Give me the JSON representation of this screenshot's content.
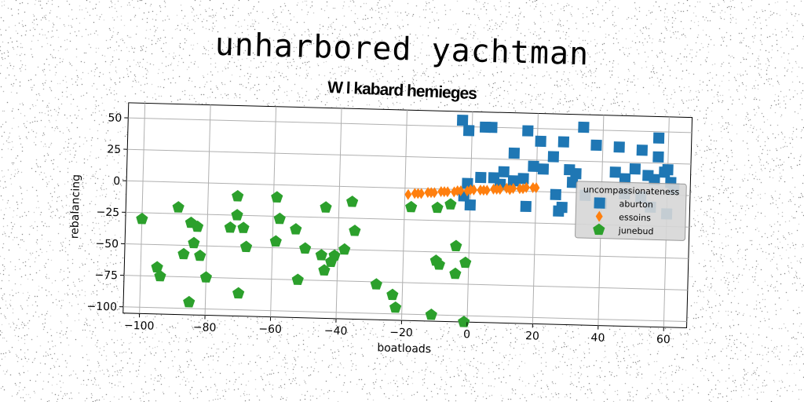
{
  "title": "unharbored yachtman",
  "chart_data": {
    "type": "scatter",
    "title": "W l kabard hemieges",
    "xlabel": "boatloads",
    "ylabel": "rebalancing",
    "xlim": [
      -105,
      67
    ],
    "ylim": [
      -105,
      62
    ],
    "xticks": [
      -100,
      -80,
      -60,
      -40,
      -20,
      0,
      20,
      40,
      60
    ],
    "yticks": [
      50,
      25,
      0,
      -25,
      -50,
      -75,
      -100
    ],
    "grid": true,
    "legend": {
      "title": "uncompassionateness",
      "position": "right"
    },
    "series": [
      {
        "name": "aburton",
        "marker": "square",
        "color": "#1f77b4",
        "points": [
          [
            -3,
            55
          ],
          [
            -1,
            47
          ],
          [
            4,
            50
          ],
          [
            6,
            50
          ],
          [
            17,
            48
          ],
          [
            21,
            40
          ],
          [
            28,
            40
          ],
          [
            34,
            52
          ],
          [
            38,
            38
          ],
          [
            45,
            37
          ],
          [
            52,
            35
          ],
          [
            57,
            45
          ],
          [
            57,
            30
          ],
          [
            50,
            20
          ],
          [
            54,
            15
          ],
          [
            56,
            12
          ],
          [
            59,
            18
          ],
          [
            61,
            10
          ],
          [
            62,
            5
          ],
          [
            60,
            20
          ],
          [
            47,
            12
          ],
          [
            44,
            17
          ],
          [
            30,
            18
          ],
          [
            31,
            8
          ],
          [
            22,
            18
          ],
          [
            19,
            20
          ],
          [
            16,
            10
          ],
          [
            13,
            8
          ],
          [
            10,
            15
          ],
          [
            7,
            10
          ],
          [
            3,
            10
          ],
          [
            -1,
            5
          ],
          [
            0,
            -12
          ],
          [
            -2,
            -5
          ],
          [
            17,
            -12
          ],
          [
            26,
            -2
          ],
          [
            27,
            -15
          ],
          [
            28,
            -12
          ],
          [
            35,
            -2
          ],
          [
            40,
            -8
          ],
          [
            47,
            0
          ],
          [
            52,
            -2
          ],
          [
            55,
            -10
          ],
          [
            60,
            -15
          ],
          [
            32,
            15
          ],
          [
            25,
            28
          ],
          [
            13,
            30
          ],
          [
            9,
            5
          ]
        ]
      },
      {
        "name": "essoins",
        "marker": "diamond",
        "color": "#ff7f0e",
        "points": [
          [
            -19,
            -5
          ],
          [
            -17,
            -4
          ],
          [
            -15,
            -4
          ],
          [
            -13,
            -3
          ],
          [
            -11,
            -3
          ],
          [
            -9,
            -2
          ],
          [
            -7,
            -2
          ],
          [
            -5,
            -2
          ],
          [
            -3,
            -1
          ],
          [
            -1,
            -1
          ],
          [
            1,
            0
          ],
          [
            3,
            0
          ],
          [
            5,
            0
          ],
          [
            7,
            1
          ],
          [
            9,
            1
          ],
          [
            11,
            2
          ],
          [
            13,
            2
          ],
          [
            15,
            2
          ],
          [
            17,
            3
          ],
          [
            19,
            3
          ],
          [
            20,
            3
          ],
          [
            -16,
            -4
          ],
          [
            -8,
            -2
          ],
          [
            0,
            0
          ],
          [
            8,
            1
          ],
          [
            16,
            2
          ],
          [
            -12,
            -3
          ],
          [
            4,
            0
          ],
          [
            12,
            1
          ],
          [
            -4,
            -1
          ]
        ]
      },
      {
        "name": "junebud",
        "marker": "pentagon",
        "color": "#2ca02c",
        "points": [
          [
            -100,
            -30
          ],
          [
            -95,
            -68
          ],
          [
            -94,
            -75
          ],
          [
            -89,
            -20
          ],
          [
            -87,
            -57
          ],
          [
            -85,
            -32
          ],
          [
            -84,
            -48
          ],
          [
            -83,
            -35
          ],
          [
            -82,
            -58
          ],
          [
            -80,
            -75
          ],
          [
            -85,
            -95
          ],
          [
            -73,
            -35
          ],
          [
            -71,
            -10
          ],
          [
            -71,
            -25
          ],
          [
            -69,
            -35
          ],
          [
            -68,
            -50
          ],
          [
            -70,
            -87
          ],
          [
            -59,
            -45
          ],
          [
            -59,
            -10
          ],
          [
            -58,
            -27
          ],
          [
            -53,
            -35
          ],
          [
            -50,
            -50
          ],
          [
            -52,
            -75
          ],
          [
            -44,
            -17
          ],
          [
            -45,
            -55
          ],
          [
            -44,
            -67
          ],
          [
            -42,
            -60
          ],
          [
            -41,
            -55
          ],
          [
            -38,
            -50
          ],
          [
            -36,
            -12
          ],
          [
            -35,
            -35
          ],
          [
            -28,
            -77
          ],
          [
            -23,
            -85
          ],
          [
            -22,
            -95
          ],
          [
            -18,
            -15
          ],
          [
            -10,
            -15
          ],
          [
            -10,
            -57
          ],
          [
            -9,
            -60
          ],
          [
            -6,
            -12
          ],
          [
            -4,
            -45
          ],
          [
            -4,
            -67
          ],
          [
            -1,
            -58
          ],
          [
            -11,
            -100
          ],
          [
            -1,
            -105
          ]
        ]
      }
    ]
  }
}
